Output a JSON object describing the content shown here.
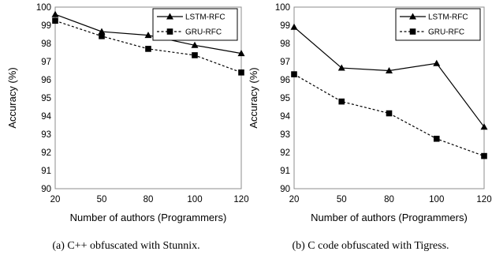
{
  "chart_data": [
    {
      "type": "line",
      "caption": "(a) C++ obfuscated with Stunnix.",
      "xlabel": "Number of authors (Programmers)",
      "ylabel": "Accuracy (%)",
      "categories": [
        "20",
        "50",
        "80",
        "100",
        "120"
      ],
      "ylim": [
        90,
        100
      ],
      "yticks": [
        "90",
        "91",
        "92",
        "93",
        "94",
        "95",
        "96",
        "97",
        "98",
        "99",
        "100"
      ],
      "grid": false,
      "legend_position": "top-right",
      "series": [
        {
          "name": "LSTM-RFC",
          "marker": "triangle",
          "line": "solid",
          "values": [
            99.6,
            98.65,
            98.45,
            97.9,
            97.45
          ]
        },
        {
          "name": "GRU-RFC",
          "marker": "square",
          "line": "dashed",
          "values": [
            99.25,
            98.4,
            97.7,
            97.35,
            96.4
          ]
        }
      ]
    },
    {
      "type": "line",
      "caption": "(b) C code obfuscated with Tigress.",
      "xlabel": "Number of authors (Programmers)",
      "ylabel": "Accuracy (%)",
      "categories": [
        "20",
        "50",
        "80",
        "100",
        "120"
      ],
      "ylim": [
        90,
        100
      ],
      "yticks": [
        "90",
        "91",
        "92",
        "93",
        "94",
        "95",
        "96",
        "97",
        "98",
        "99",
        "100"
      ],
      "grid": false,
      "legend_position": "top-right",
      "series": [
        {
          "name": "LSTM-RFC",
          "marker": "triangle",
          "line": "solid",
          "values": [
            98.9,
            96.65,
            96.5,
            96.9,
            93.4
          ]
        },
        {
          "name": "GRU-RFC",
          "marker": "square",
          "line": "dashed",
          "values": [
            96.3,
            94.8,
            94.15,
            92.75,
            91.8
          ]
        }
      ]
    }
  ]
}
